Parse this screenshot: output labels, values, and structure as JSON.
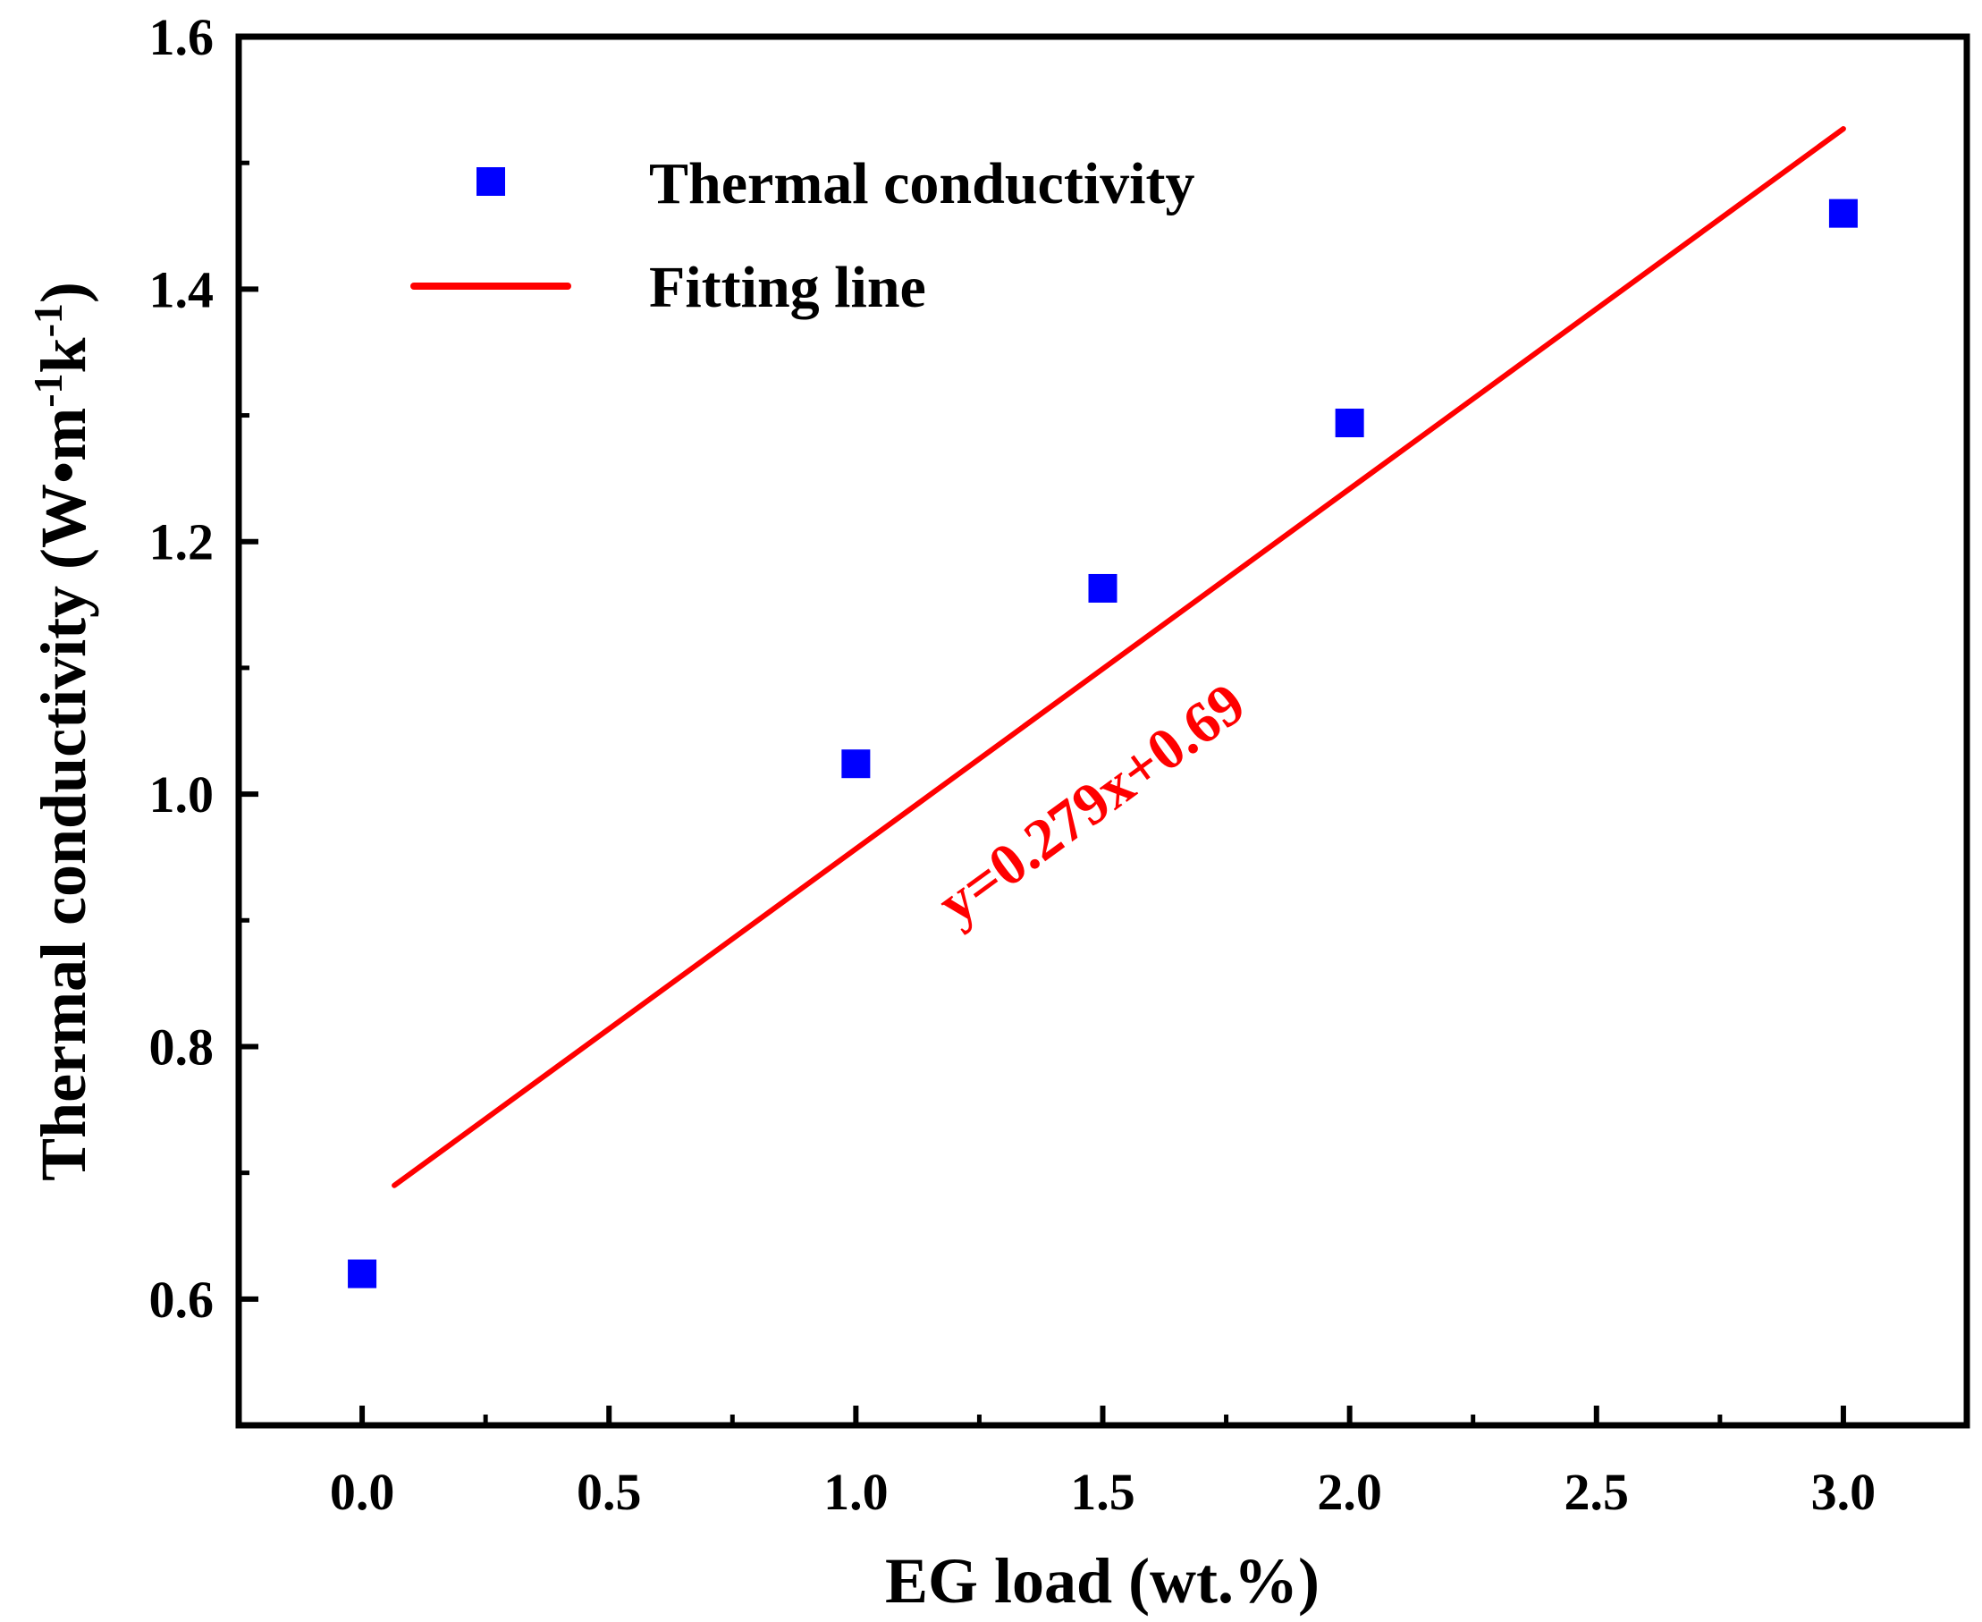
{
  "chart_data": {
    "type": "scatter",
    "title": "",
    "xlabel": "EG load (wt.%)",
    "ylabel": "Thermal conductivity (W•m-1k-1)",
    "ylabel_parts": {
      "main": "Thermal conductivity (W•m",
      "sup1": "-1",
      "mid": "k",
      "sup2": "-1",
      "end": ")"
    },
    "xlim": [
      -0.25,
      3.25
    ],
    "ylim": [
      0.5,
      1.6
    ],
    "xticks": [
      0.0,
      0.5,
      1.0,
      1.5,
      2.0,
      2.5,
      3.0
    ],
    "xtick_labels": [
      "0.0",
      "0.5",
      "1.0",
      "1.5",
      "2.0",
      "2.5",
      "3.0"
    ],
    "yticks": [
      0.6,
      0.8,
      1.0,
      1.2,
      1.4,
      1.6
    ],
    "ytick_labels": [
      "0.6",
      "0.8",
      "1.0",
      "1.2",
      "1.4",
      "1.6"
    ],
    "grid": false,
    "legend_position": "top-left",
    "series": [
      {
        "name": "Thermal conductivity",
        "kind": "scatter",
        "marker": "square",
        "color": "#0000ff",
        "x": [
          0.0,
          1.0,
          1.5,
          2.0,
          3.0
        ],
        "y": [
          0.62,
          1.024,
          1.163,
          1.294,
          1.46
        ]
      },
      {
        "name": "Fitting line",
        "kind": "line",
        "color": "#ff0000",
        "slope": 0.279,
        "intercept": 0.69,
        "x_range": [
          0.0,
          3.0
        ]
      }
    ],
    "annotations": [
      {
        "text": "y=0.279x+0.69",
        "color": "#ff0000",
        "at_x": 1.5,
        "at_y": 0.98
      }
    ]
  }
}
